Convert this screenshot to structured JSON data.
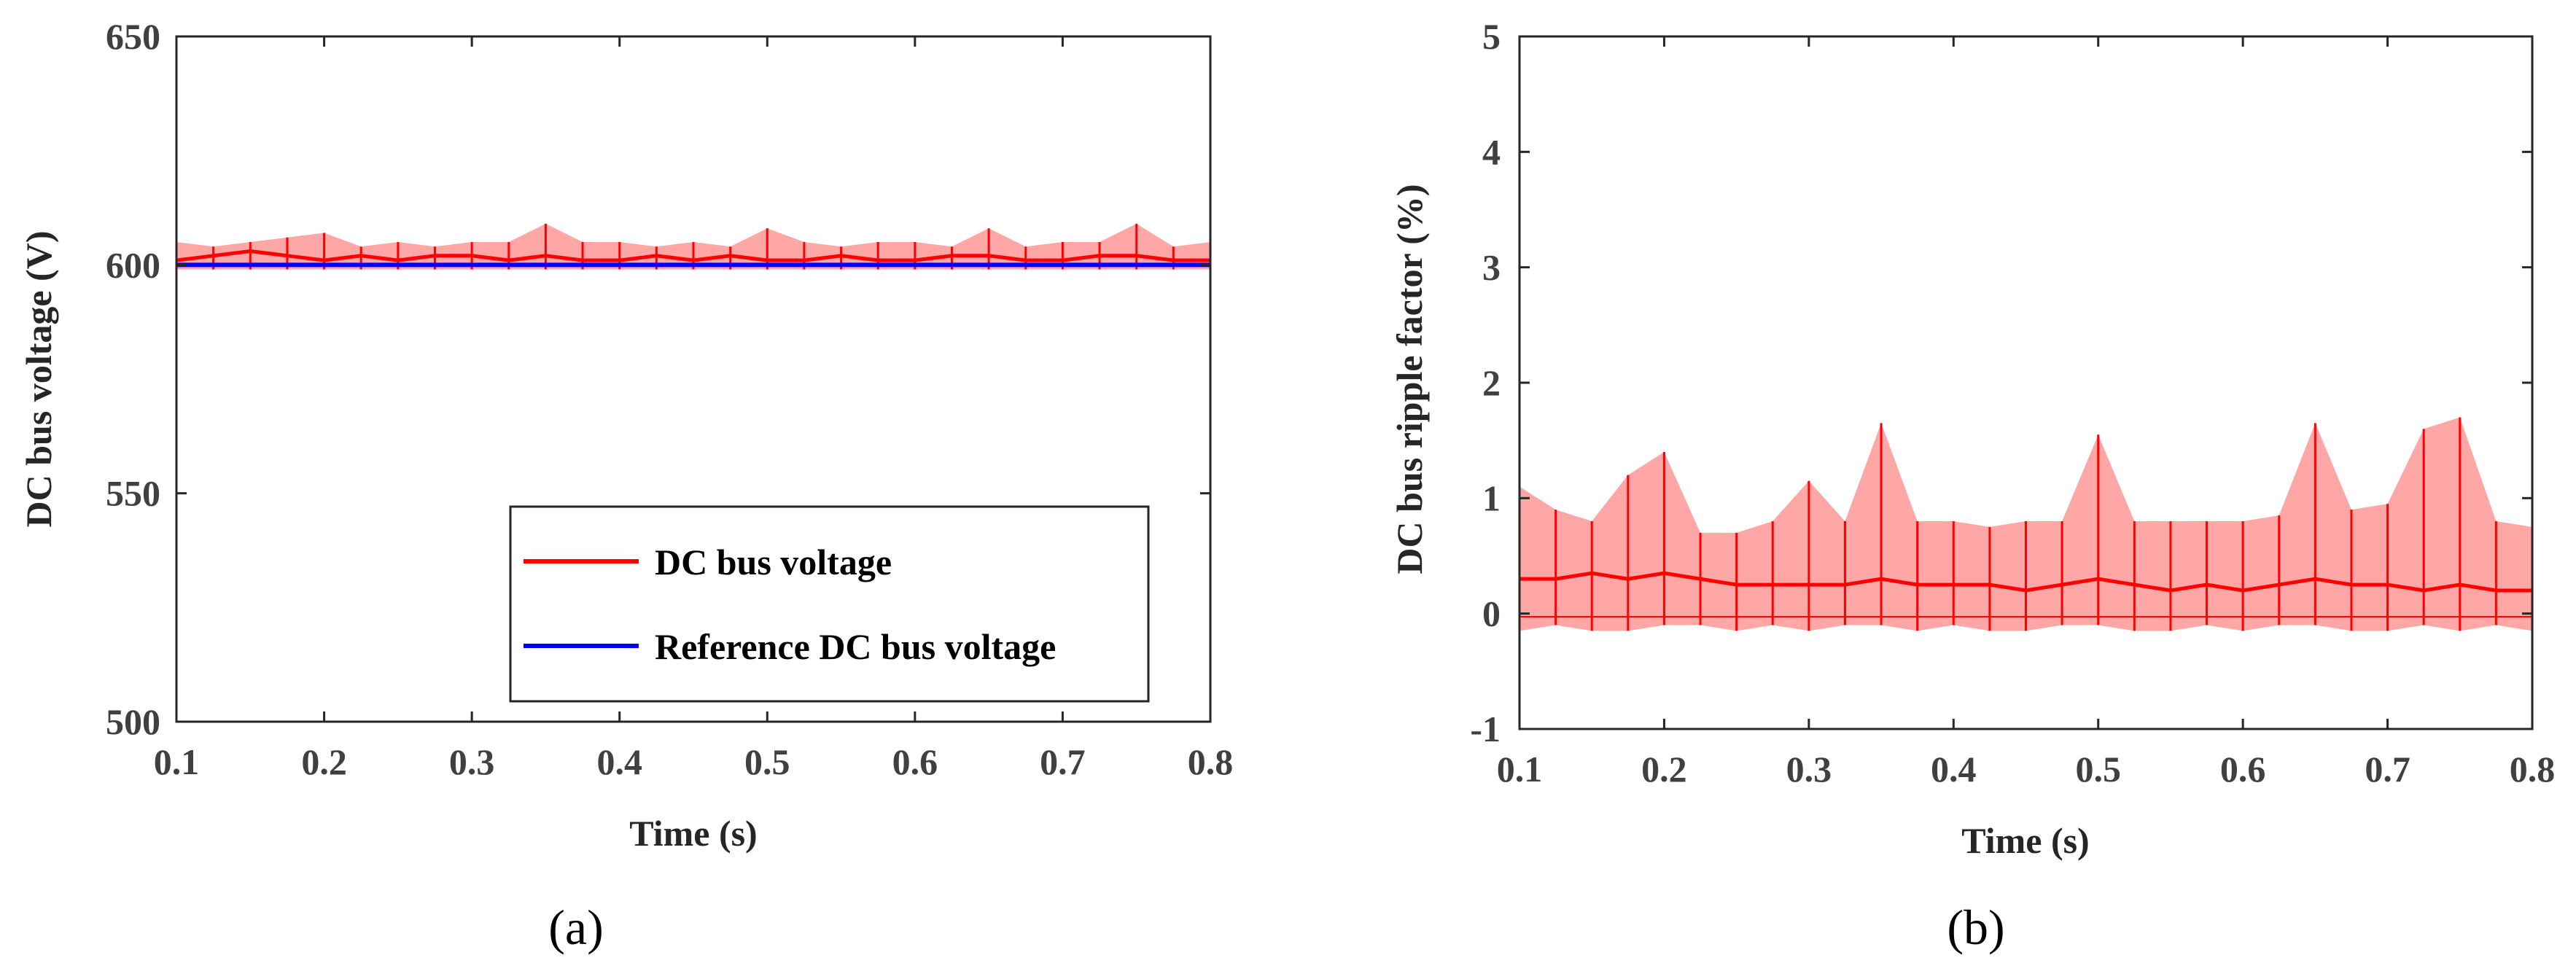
{
  "chart_data": [
    {
      "type": "line",
      "panel_label": "(a)",
      "title": "",
      "xlabel": "Time (s)",
      "ylabel": "DC bus voltage (V)",
      "xlim": [
        0.1,
        0.8
      ],
      "ylim": [
        500,
        650
      ],
      "xticks": [
        "0.1",
        "0.2",
        "0.3",
        "0.4",
        "0.5",
        "0.6",
        "0.7",
        "0.8"
      ],
      "yticks": [
        "500",
        "550",
        "600",
        "650"
      ],
      "grid": false,
      "legend_position": "lower-right",
      "colors": {
        "voltage": "#ff0000",
        "reference": "#0000ff",
        "axes": "#262626"
      },
      "series": [
        {
          "name": "DC bus voltage",
          "color": "#ff0000",
          "x": [
            0.1,
            0.125,
            0.15,
            0.175,
            0.2,
            0.225,
            0.25,
            0.275,
            0.3,
            0.325,
            0.35,
            0.375,
            0.4,
            0.425,
            0.45,
            0.475,
            0.5,
            0.525,
            0.55,
            0.575,
            0.6,
            0.625,
            0.65,
            0.675,
            0.7,
            0.725,
            0.75,
            0.775,
            0.8
          ],
          "values": [
            601,
            602,
            603,
            602,
            601,
            602,
            601,
            602,
            602,
            601,
            602,
            601,
            601,
            602,
            601,
            602,
            601,
            601,
            602,
            601,
            601,
            602,
            602,
            601,
            601,
            602,
            602,
            601,
            601
          ],
          "band_min": [
            599,
            599,
            599,
            599,
            599,
            599,
            599,
            599,
            599,
            599,
            599,
            599,
            599,
            599,
            599,
            599,
            599,
            599,
            599,
            599,
            599,
            599,
            599,
            599,
            599,
            599,
            599,
            599,
            599
          ],
          "band_max": [
            605,
            604,
            605,
            606,
            607,
            604,
            605,
            604,
            605,
            605,
            609,
            605,
            605,
            604,
            605,
            604,
            608,
            605,
            604,
            605,
            605,
            604,
            608,
            604,
            605,
            605,
            609,
            604,
            605
          ]
        },
        {
          "name": "Reference DC bus voltage",
          "color": "#0000ff",
          "x": [
            0.1,
            0.8
          ],
          "values": [
            600,
            600
          ]
        }
      ]
    },
    {
      "type": "line",
      "panel_label": "(b)",
      "title": "",
      "xlabel": "Time (s)",
      "ylabel": "DC bus  ripple factor  (%)",
      "xlim": [
        0.1,
        0.8
      ],
      "ylim": [
        -1,
        5
      ],
      "xticks": [
        "0.1",
        "0.2",
        "0.3",
        "0.4",
        "0.5",
        "0.6",
        "0.7",
        "0.8"
      ],
      "yticks": [
        "-1",
        "0",
        "1",
        "2",
        "3",
        "4",
        "5"
      ],
      "grid": false,
      "legend_position": "none",
      "colors": {
        "ripple": "#ff0000",
        "axes": "#262626"
      },
      "series": [
        {
          "name": "DC bus ripple factor",
          "color": "#ff0000",
          "x": [
            0.1,
            0.125,
            0.15,
            0.175,
            0.2,
            0.225,
            0.25,
            0.275,
            0.3,
            0.325,
            0.35,
            0.375,
            0.4,
            0.425,
            0.45,
            0.475,
            0.5,
            0.525,
            0.55,
            0.575,
            0.6,
            0.625,
            0.65,
            0.675,
            0.7,
            0.725,
            0.75,
            0.775,
            0.8
          ],
          "values": [
            0.3,
            0.3,
            0.35,
            0.3,
            0.35,
            0.3,
            0.25,
            0.25,
            0.25,
            0.25,
            0.3,
            0.25,
            0.25,
            0.25,
            0.2,
            0.25,
            0.3,
            0.25,
            0.2,
            0.25,
            0.2,
            0.25,
            0.3,
            0.25,
            0.25,
            0.2,
            0.25,
            0.2,
            0.2
          ],
          "band_min": [
            -0.15,
            -0.1,
            -0.15,
            -0.15,
            -0.1,
            -0.1,
            -0.15,
            -0.1,
            -0.15,
            -0.1,
            -0.1,
            -0.15,
            -0.1,
            -0.15,
            -0.15,
            -0.1,
            -0.1,
            -0.15,
            -0.15,
            -0.1,
            -0.15,
            -0.1,
            -0.1,
            -0.15,
            -0.15,
            -0.1,
            -0.15,
            -0.1,
            -0.15
          ],
          "band_max": [
            1.1,
            0.9,
            0.8,
            1.2,
            1.4,
            0.7,
            0.7,
            0.8,
            1.15,
            0.8,
            1.65,
            0.8,
            0.8,
            0.75,
            0.8,
            0.8,
            1.55,
            0.8,
            0.8,
            0.8,
            0.8,
            0.85,
            1.65,
            0.9,
            0.95,
            1.6,
            1.7,
            0.8,
            0.75
          ]
        }
      ]
    }
  ],
  "legend_a": {
    "items": [
      "DC bus voltage",
      "Reference DC bus voltage"
    ]
  }
}
